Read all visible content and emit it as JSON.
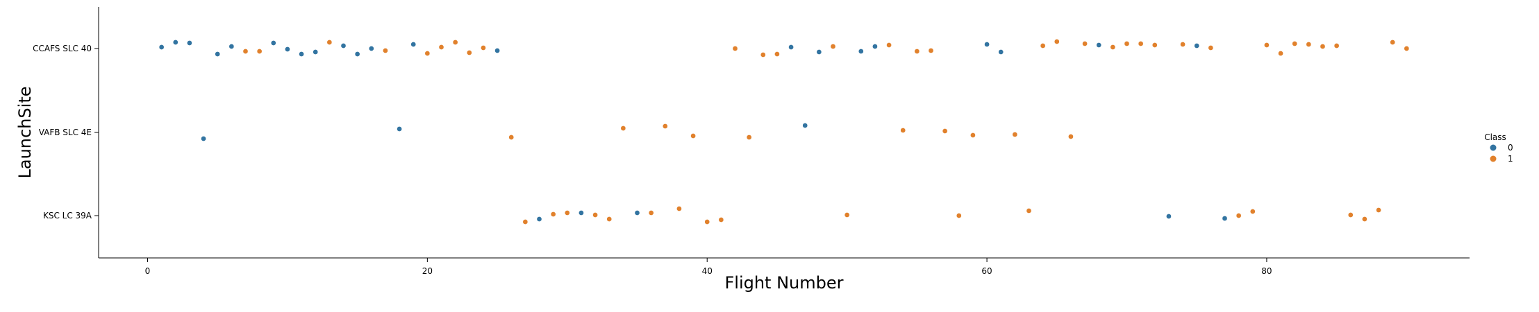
{
  "chart_data": {
    "type": "scatter",
    "title": "",
    "xlabel": "Flight Number",
    "ylabel": "LaunchSite",
    "xlim": [
      -3.5,
      94.5
    ],
    "xticks": [
      0,
      20,
      40,
      60,
      80
    ],
    "categories": [
      "CCAFS SLC 40",
      "VAFB SLC 4E",
      "KSC LC 39A"
    ],
    "legend": {
      "title": "Class",
      "position": "right",
      "entries": [
        {
          "label": "0",
          "color": "#3274a1"
        },
        {
          "label": "1",
          "color": "#e1812c"
        }
      ]
    },
    "grid": false,
    "series": [
      {
        "name": "0",
        "color": "#3274a1",
        "points": [
          {
            "x": 1,
            "site": "CCAFS SLC 40",
            "j": 0.02
          },
          {
            "x": 2,
            "site": "CCAFS SLC 40",
            "j": 0.09
          },
          {
            "x": 3,
            "site": "CCAFS SLC 40",
            "j": 0.08
          },
          {
            "x": 4,
            "site": "VAFB SLC 4E",
            "j": -0.09
          },
          {
            "x": 5,
            "site": "CCAFS SLC 40",
            "j": -0.08
          },
          {
            "x": 6,
            "site": "CCAFS SLC 40",
            "j": 0.03
          },
          {
            "x": 9,
            "site": "CCAFS SLC 40",
            "j": 0.08
          },
          {
            "x": 10,
            "site": "CCAFS SLC 40",
            "j": -0.01
          },
          {
            "x": 11,
            "site": "CCAFS SLC 40",
            "j": -0.08
          },
          {
            "x": 12,
            "site": "CCAFS SLC 40",
            "j": -0.05
          },
          {
            "x": 14,
            "site": "CCAFS SLC 40",
            "j": 0.04
          },
          {
            "x": 15,
            "site": "CCAFS SLC 40",
            "j": -0.08
          },
          {
            "x": 16,
            "site": "CCAFS SLC 40",
            "j": 0.0
          },
          {
            "x": 18,
            "site": "VAFB SLC 4E",
            "j": 0.05
          },
          {
            "x": 19,
            "site": "CCAFS SLC 40",
            "j": 0.06
          },
          {
            "x": 25,
            "site": "CCAFS SLC 40",
            "j": -0.03
          },
          {
            "x": 28,
            "site": "KSC LC 39A",
            "j": -0.05
          },
          {
            "x": 31,
            "site": "KSC LC 39A",
            "j": 0.04
          },
          {
            "x": 35,
            "site": "KSC LC 39A",
            "j": 0.04
          },
          {
            "x": 46,
            "site": "CCAFS SLC 40",
            "j": 0.02
          },
          {
            "x": 47,
            "site": "VAFB SLC 4E",
            "j": 0.1
          },
          {
            "x": 48,
            "site": "CCAFS SLC 40",
            "j": -0.05
          },
          {
            "x": 51,
            "site": "CCAFS SLC 40",
            "j": -0.04
          },
          {
            "x": 52,
            "site": "CCAFS SLC 40",
            "j": 0.03
          },
          {
            "x": 60,
            "site": "CCAFS SLC 40",
            "j": 0.06
          },
          {
            "x": 61,
            "site": "CCAFS SLC 40",
            "j": -0.05
          },
          {
            "x": 68,
            "site": "CCAFS SLC 40",
            "j": 0.05
          },
          {
            "x": 73,
            "site": "KSC LC 39A",
            "j": -0.01
          },
          {
            "x": 75,
            "site": "CCAFS SLC 40",
            "j": 0.04
          },
          {
            "x": 77,
            "site": "KSC LC 39A",
            "j": -0.04
          }
        ]
      },
      {
        "name": "1",
        "color": "#e1812c",
        "points": [
          {
            "x": 7,
            "site": "CCAFS SLC 40",
            "j": -0.04
          },
          {
            "x": 8,
            "site": "CCAFS SLC 40",
            "j": -0.04
          },
          {
            "x": 13,
            "site": "CCAFS SLC 40",
            "j": 0.09
          },
          {
            "x": 17,
            "site": "CCAFS SLC 40",
            "j": -0.03
          },
          {
            "x": 20,
            "site": "CCAFS SLC 40",
            "j": -0.07
          },
          {
            "x": 21,
            "site": "CCAFS SLC 40",
            "j": 0.02
          },
          {
            "x": 22,
            "site": "CCAFS SLC 40",
            "j": 0.09
          },
          {
            "x": 23,
            "site": "CCAFS SLC 40",
            "j": -0.06
          },
          {
            "x": 24,
            "site": "CCAFS SLC 40",
            "j": 0.01
          },
          {
            "x": 26,
            "site": "VAFB SLC 4E",
            "j": -0.07
          },
          {
            "x": 27,
            "site": "KSC LC 39A",
            "j": -0.09
          },
          {
            "x": 29,
            "site": "KSC LC 39A",
            "j": 0.02
          },
          {
            "x": 30,
            "site": "KSC LC 39A",
            "j": 0.04
          },
          {
            "x": 32,
            "site": "KSC LC 39A",
            "j": 0.01
          },
          {
            "x": 33,
            "site": "KSC LC 39A",
            "j": -0.05
          },
          {
            "x": 34,
            "site": "VAFB SLC 4E",
            "j": 0.06
          },
          {
            "x": 36,
            "site": "KSC LC 39A",
            "j": 0.04
          },
          {
            "x": 37,
            "site": "VAFB SLC 4E",
            "j": 0.09
          },
          {
            "x": 38,
            "site": "KSC LC 39A",
            "j": 0.1
          },
          {
            "x": 39,
            "site": "VAFB SLC 4E",
            "j": -0.05
          },
          {
            "x": 40,
            "site": "KSC LC 39A",
            "j": -0.09
          },
          {
            "x": 41,
            "site": "KSC LC 39A",
            "j": -0.06
          },
          {
            "x": 42,
            "site": "CCAFS SLC 40",
            "j": 0.0
          },
          {
            "x": 43,
            "site": "VAFB SLC 4E",
            "j": -0.07
          },
          {
            "x": 44,
            "site": "CCAFS SLC 40",
            "j": -0.09
          },
          {
            "x": 45,
            "site": "CCAFS SLC 40",
            "j": -0.08
          },
          {
            "x": 49,
            "site": "CCAFS SLC 40",
            "j": 0.03
          },
          {
            "x": 50,
            "site": "KSC LC 39A",
            "j": 0.01
          },
          {
            "x": 53,
            "site": "CCAFS SLC 40",
            "j": 0.05
          },
          {
            "x": 54,
            "site": "VAFB SLC 4E",
            "j": 0.03
          },
          {
            "x": 55,
            "site": "CCAFS SLC 40",
            "j": -0.04
          },
          {
            "x": 56,
            "site": "CCAFS SLC 40",
            "j": -0.03
          },
          {
            "x": 57,
            "site": "VAFB SLC 4E",
            "j": 0.02
          },
          {
            "x": 58,
            "site": "KSC LC 39A",
            "j": 0.0
          },
          {
            "x": 59,
            "site": "VAFB SLC 4E",
            "j": -0.04
          },
          {
            "x": 62,
            "site": "VAFB SLC 4E",
            "j": -0.03
          },
          {
            "x": 63,
            "site": "KSC LC 39A",
            "j": 0.07
          },
          {
            "x": 64,
            "site": "CCAFS SLC 40",
            "j": 0.04
          },
          {
            "x": 65,
            "site": "CCAFS SLC 40",
            "j": 0.1
          },
          {
            "x": 66,
            "site": "VAFB SLC 4E",
            "j": -0.06
          },
          {
            "x": 67,
            "site": "CCAFS SLC 40",
            "j": 0.07
          },
          {
            "x": 69,
            "site": "CCAFS SLC 40",
            "j": 0.02
          },
          {
            "x": 70,
            "site": "CCAFS SLC 40",
            "j": 0.07
          },
          {
            "x": 71,
            "site": "CCAFS SLC 40",
            "j": 0.07
          },
          {
            "x": 72,
            "site": "CCAFS SLC 40",
            "j": 0.05
          },
          {
            "x": 74,
            "site": "CCAFS SLC 40",
            "j": 0.06
          },
          {
            "x": 76,
            "site": "CCAFS SLC 40",
            "j": 0.01
          },
          {
            "x": 78,
            "site": "KSC LC 39A",
            "j": 0.0
          },
          {
            "x": 79,
            "site": "KSC LC 39A",
            "j": 0.06
          },
          {
            "x": 80,
            "site": "CCAFS SLC 40",
            "j": 0.05
          },
          {
            "x": 81,
            "site": "CCAFS SLC 40",
            "j": -0.07
          },
          {
            "x": 82,
            "site": "CCAFS SLC 40",
            "j": 0.07
          },
          {
            "x": 83,
            "site": "CCAFS SLC 40",
            "j": 0.06
          },
          {
            "x": 84,
            "site": "CCAFS SLC 40",
            "j": 0.03
          },
          {
            "x": 85,
            "site": "CCAFS SLC 40",
            "j": 0.04
          },
          {
            "x": 86,
            "site": "KSC LC 39A",
            "j": 0.01
          },
          {
            "x": 87,
            "site": "KSC LC 39A",
            "j": -0.05
          },
          {
            "x": 88,
            "site": "KSC LC 39A",
            "j": 0.08
          },
          {
            "x": 89,
            "site": "CCAFS SLC 40",
            "j": 0.09
          },
          {
            "x": 90,
            "site": "CCAFS SLC 40",
            "j": 0.0
          }
        ]
      }
    ]
  }
}
